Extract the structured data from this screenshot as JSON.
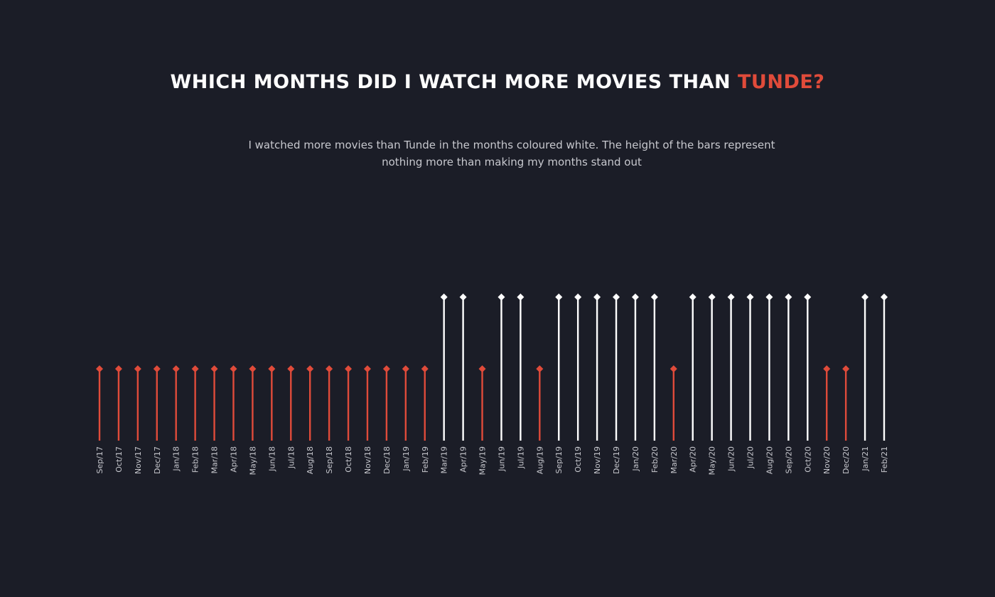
{
  "title": {
    "main": "WHICH MONTHS DID I WATCH MORE MOVIES THAN ",
    "highlight": "TUNDE?"
  },
  "subtitle": "I watched more movies than Tunde in the months coloured white. The height of the bars represent nothing more than making my months stand out",
  "colors": {
    "background": "#1b1d27",
    "me": "#ffffff",
    "tunde": "#e04b3a",
    "label": "#c7c8ce"
  },
  "chart_data": {
    "type": "bar",
    "style": "lollipop",
    "title": "WHICH MONTHS DID I WATCH MORE MOVIES THAN TUNDE?",
    "xlabel": "",
    "ylabel": "",
    "ylim": [
      0,
      2
    ],
    "grid": false,
    "categories": [
      "Sep/17",
      "Oct/17",
      "Nov/17",
      "Dec/17",
      "Jan/18",
      "Feb/18",
      "Mar/18",
      "Apr/18",
      "May/18",
      "Jun/18",
      "Jul/18",
      "Aug/18",
      "Sep/18",
      "Oct/18",
      "Nov/18",
      "Dec/18",
      "Jan/19",
      "Feb/19",
      "Mar/19",
      "Apr/19",
      "May/19",
      "Jun/19",
      "Jul/19",
      "Aug/19",
      "Sep/19",
      "Oct/19",
      "Nov/19",
      "Dec/19",
      "Jan/20",
      "Feb/20",
      "Mar/20",
      "Apr/20",
      "May/20",
      "Jun/20",
      "Jul/20",
      "Aug/20",
      "Sep/20",
      "Oct/20",
      "Nov/20",
      "Dec/20",
      "Jan/21",
      "Feb/21"
    ],
    "values": [
      1,
      1,
      1,
      1,
      1,
      1,
      1,
      1,
      1,
      1,
      1,
      1,
      1,
      1,
      1,
      1,
      1,
      1,
      2,
      2,
      1,
      2,
      2,
      1,
      2,
      2,
      2,
      2,
      2,
      2,
      1,
      2,
      2,
      2,
      2,
      2,
      2,
      2,
      1,
      1,
      2,
      2
    ],
    "winner": [
      "tunde",
      "tunde",
      "tunde",
      "tunde",
      "tunde",
      "tunde",
      "tunde",
      "tunde",
      "tunde",
      "tunde",
      "tunde",
      "tunde",
      "tunde",
      "tunde",
      "tunde",
      "tunde",
      "tunde",
      "tunde",
      "me",
      "me",
      "tunde",
      "me",
      "me",
      "tunde",
      "me",
      "me",
      "me",
      "me",
      "me",
      "me",
      "tunde",
      "me",
      "me",
      "me",
      "me",
      "me",
      "me",
      "me",
      "tunde",
      "tunde",
      "me",
      "me"
    ]
  }
}
